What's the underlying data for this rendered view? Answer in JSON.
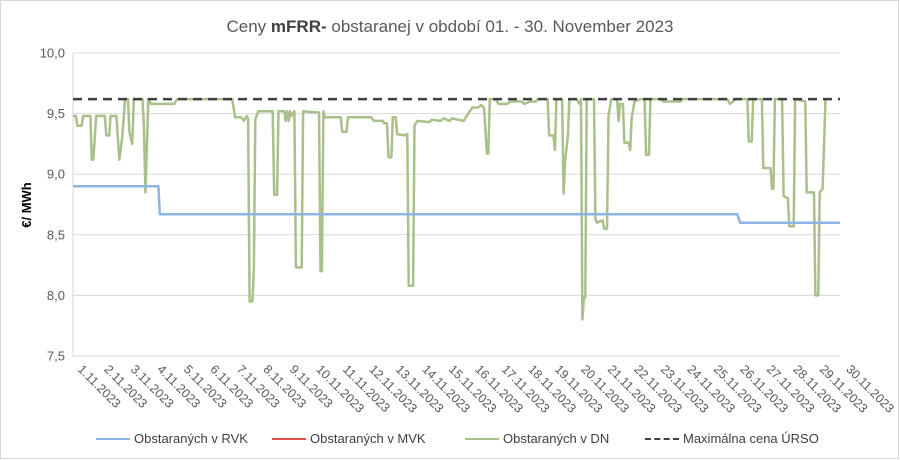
{
  "chart_data": {
    "type": "line",
    "title_prefix": "Ceny ",
    "title_bold": "mFRR-",
    "title_suffix": " obstaranej v období 01. - 30. November 2023",
    "ylabel": "€/ MWh",
    "ylim": [
      7.5,
      10.0
    ],
    "yticks": [
      "7,5",
      "8,0",
      "8,5",
      "9,0",
      "9,5",
      "10,0"
    ],
    "ytick_values": [
      7.5,
      8.0,
      8.5,
      9.0,
      9.5,
      10.0
    ],
    "categories": [
      "1.11.2023",
      "2.11.2023",
      "3.11.2023",
      "4.11.2023",
      "5.11.2023",
      "6.11.2023",
      "7.11.2023",
      "8.11.2023",
      "9.11.2023",
      "10.11.2023",
      "11.11.2023",
      "12.11.2023",
      "13.11.2023",
      "14.11.2023",
      "15.11.2023",
      "16.11.2023",
      "17.11.2023",
      "18.11.2023",
      "19.11.2023",
      "20.11.2023",
      "21.11.2023",
      "22.11.2023",
      "23.11.2023",
      "24.11.2023",
      "25.11.2023",
      "26.11.2023",
      "27.11.2023",
      "28.11.2023",
      "29.11.2023",
      "30.11.2023"
    ],
    "grid": "horizontal",
    "legend_position": "bottom",
    "series": [
      {
        "name": "Obstaraných v RVK",
        "color": "#8eb4e3",
        "style": "solid",
        "points": [
          [
            0,
            8.9
          ],
          [
            2.95,
            8.9
          ],
          [
            3.0,
            8.67
          ],
          [
            22.95,
            8.67
          ],
          [
            23.05,
            8.6
          ],
          [
            26.5,
            8.6
          ]
        ]
      },
      {
        "name": "Obstaraných v MVK",
        "color": "#e0504a",
        "style": "solid",
        "points": []
      },
      {
        "name": "Obstaraných v DN",
        "color": "#a9c08a",
        "style": "solid",
        "points": [
          [
            0,
            9.48
          ],
          [
            0.1,
            9.48
          ],
          [
            0.15,
            9.4
          ],
          [
            0.3,
            9.4
          ],
          [
            0.35,
            9.48
          ],
          [
            0.6,
            9.48
          ],
          [
            0.65,
            9.12
          ],
          [
            0.7,
            9.12
          ],
          [
            0.8,
            9.48
          ],
          [
            1.1,
            9.48
          ],
          [
            1.15,
            9.32
          ],
          [
            1.25,
            9.32
          ],
          [
            1.3,
            9.48
          ],
          [
            1.5,
            9.48
          ],
          [
            1.6,
            9.12
          ],
          [
            1.7,
            9.3
          ],
          [
            1.8,
            9.62
          ],
          [
            1.9,
            9.62
          ],
          [
            1.95,
            9.35
          ],
          [
            2.05,
            9.25
          ],
          [
            2.1,
            9.62
          ],
          [
            2.4,
            9.62
          ],
          [
            2.45,
            9.4
          ],
          [
            2.5,
            8.85
          ],
          [
            2.55,
            9.2
          ],
          [
            2.6,
            9.62
          ],
          [
            2.7,
            9.58
          ],
          [
            3.5,
            9.58
          ],
          [
            3.6,
            9.62
          ],
          [
            5.5,
            9.62
          ],
          [
            5.6,
            9.47
          ],
          [
            5.8,
            9.47
          ],
          [
            5.85,
            9.46
          ],
          [
            5.9,
            9.44
          ],
          [
            6.0,
            9.48
          ],
          [
            6.05,
            9.46
          ],
          [
            6.1,
            7.95
          ],
          [
            6.2,
            7.95
          ],
          [
            6.25,
            8.22
          ],
          [
            6.3,
            9.45
          ],
          [
            6.4,
            9.52
          ],
          [
            6.9,
            9.52
          ],
          [
            6.95,
            8.83
          ],
          [
            7.05,
            8.83
          ],
          [
            7.1,
            9.52
          ],
          [
            7.3,
            9.52
          ],
          [
            7.35,
            9.44
          ],
          [
            7.4,
            9.52
          ],
          [
            7.45,
            9.44
          ],
          [
            7.5,
            9.52
          ],
          [
            7.55,
            9.48
          ],
          [
            7.65,
            9.52
          ],
          [
            7.7,
            8.23
          ],
          [
            7.9,
            8.23
          ],
          [
            7.95,
            9.52
          ],
          [
            8.4,
            9.51
          ],
          [
            8.5,
            9.51
          ],
          [
            8.55,
            8.2
          ],
          [
            8.6,
            8.2
          ],
          [
            8.65,
            9.52
          ],
          [
            8.7,
            9.47
          ],
          [
            9.25,
            9.47
          ],
          [
            9.3,
            9.35
          ],
          [
            9.45,
            9.35
          ],
          [
            9.5,
            9.47
          ],
          [
            10.3,
            9.47
          ],
          [
            10.4,
            9.44
          ],
          [
            10.7,
            9.44
          ],
          [
            10.75,
            9.42
          ],
          [
            10.85,
            9.42
          ],
          [
            10.9,
            9.14
          ],
          [
            11.0,
            9.14
          ],
          [
            11.05,
            9.47
          ],
          [
            11.15,
            9.47
          ],
          [
            11.2,
            9.33
          ],
          [
            11.45,
            9.32
          ],
          [
            11.55,
            9.33
          ],
          [
            11.6,
            8.08
          ],
          [
            11.75,
            8.08
          ],
          [
            11.8,
            9.4
          ],
          [
            11.9,
            9.44
          ],
          [
            12.3,
            9.43
          ],
          [
            12.4,
            9.45
          ],
          [
            12.7,
            9.44
          ],
          [
            12.8,
            9.46
          ],
          [
            13.0,
            9.44
          ],
          [
            13.1,
            9.46
          ],
          [
            13.5,
            9.44
          ],
          [
            13.6,
            9.48
          ],
          [
            13.8,
            9.55
          ],
          [
            14.0,
            9.55
          ],
          [
            14.1,
            9.57
          ],
          [
            14.2,
            9.55
          ],
          [
            14.3,
            9.17
          ],
          [
            14.35,
            9.17
          ],
          [
            14.4,
            9.62
          ],
          [
            14.6,
            9.62
          ],
          [
            14.7,
            9.58
          ],
          [
            15.0,
            9.58
          ],
          [
            15.1,
            9.6
          ],
          [
            15.5,
            9.6
          ],
          [
            15.6,
            9.58
          ],
          [
            15.8,
            9.6
          ],
          [
            16.0,
            9.6
          ],
          [
            16.05,
            9.62
          ],
          [
            16.4,
            9.62
          ],
          [
            16.45,
            9.32
          ],
          [
            16.6,
            9.32
          ],
          [
            16.65,
            9.2
          ],
          [
            16.7,
            9.62
          ],
          [
            16.9,
            9.62
          ],
          [
            16.95,
            8.84
          ],
          [
            17.0,
            9.1
          ],
          [
            17.1,
            9.32
          ],
          [
            17.15,
            9.62
          ],
          [
            17.4,
            9.62
          ],
          [
            17.5,
            9.58
          ],
          [
            17.55,
            9.62
          ],
          [
            17.6,
            7.8
          ],
          [
            17.65,
            7.98
          ],
          [
            17.7,
            7.98
          ],
          [
            17.75,
            9.62
          ],
          [
            18.0,
            9.62
          ],
          [
            18.05,
            8.63
          ],
          [
            18.1,
            8.6
          ],
          [
            18.3,
            8.62
          ],
          [
            18.35,
            8.55
          ],
          [
            18.45,
            8.55
          ],
          [
            18.5,
            9.48
          ],
          [
            18.6,
            9.62
          ],
          [
            18.8,
            9.62
          ],
          [
            18.85,
            9.44
          ],
          [
            18.9,
            9.58
          ],
          [
            19.0,
            9.58
          ],
          [
            19.05,
            9.26
          ],
          [
            19.2,
            9.26
          ],
          [
            19.25,
            9.2
          ],
          [
            19.3,
            9.46
          ],
          [
            19.4,
            9.6
          ],
          [
            19.6,
            9.62
          ],
          [
            19.75,
            9.62
          ],
          [
            19.8,
            9.16
          ],
          [
            19.9,
            9.16
          ],
          [
            19.95,
            9.62
          ],
          [
            20.3,
            9.62
          ],
          [
            20.4,
            9.6
          ],
          [
            21.0,
            9.6
          ],
          [
            21.05,
            9.62
          ],
          [
            22.6,
            9.62
          ],
          [
            22.7,
            9.58
          ],
          [
            22.9,
            9.62
          ],
          [
            23.0,
            9.62
          ],
          [
            23.3,
            9.62
          ],
          [
            23.35,
            9.27
          ],
          [
            23.45,
            9.27
          ],
          [
            23.5,
            9.62
          ],
          [
            23.8,
            9.62
          ],
          [
            23.85,
            9.05
          ],
          [
            24.1,
            9.05
          ],
          [
            24.15,
            8.88
          ],
          [
            24.2,
            8.88
          ],
          [
            24.25,
            9.62
          ],
          [
            24.5,
            9.62
          ],
          [
            24.55,
            8.82
          ],
          [
            24.7,
            8.8
          ],
          [
            24.75,
            8.57
          ],
          [
            24.9,
            8.57
          ],
          [
            24.95,
            9.62
          ],
          [
            25.3,
            9.6
          ],
          [
            25.35,
            8.85
          ],
          [
            25.6,
            8.85
          ],
          [
            25.65,
            8.0
          ],
          [
            25.75,
            8.0
          ],
          [
            25.8,
            8.85
          ],
          [
            25.9,
            8.88
          ],
          [
            26.0,
            9.62
          ],
          [
            26.05,
            9.62
          ]
        ]
      },
      {
        "name": "Maximálna cena ÚRSO",
        "color": "#404040",
        "style": "dashed",
        "points": [
          [
            0,
            9.62
          ],
          [
            26.5,
            9.62
          ]
        ]
      }
    ]
  }
}
